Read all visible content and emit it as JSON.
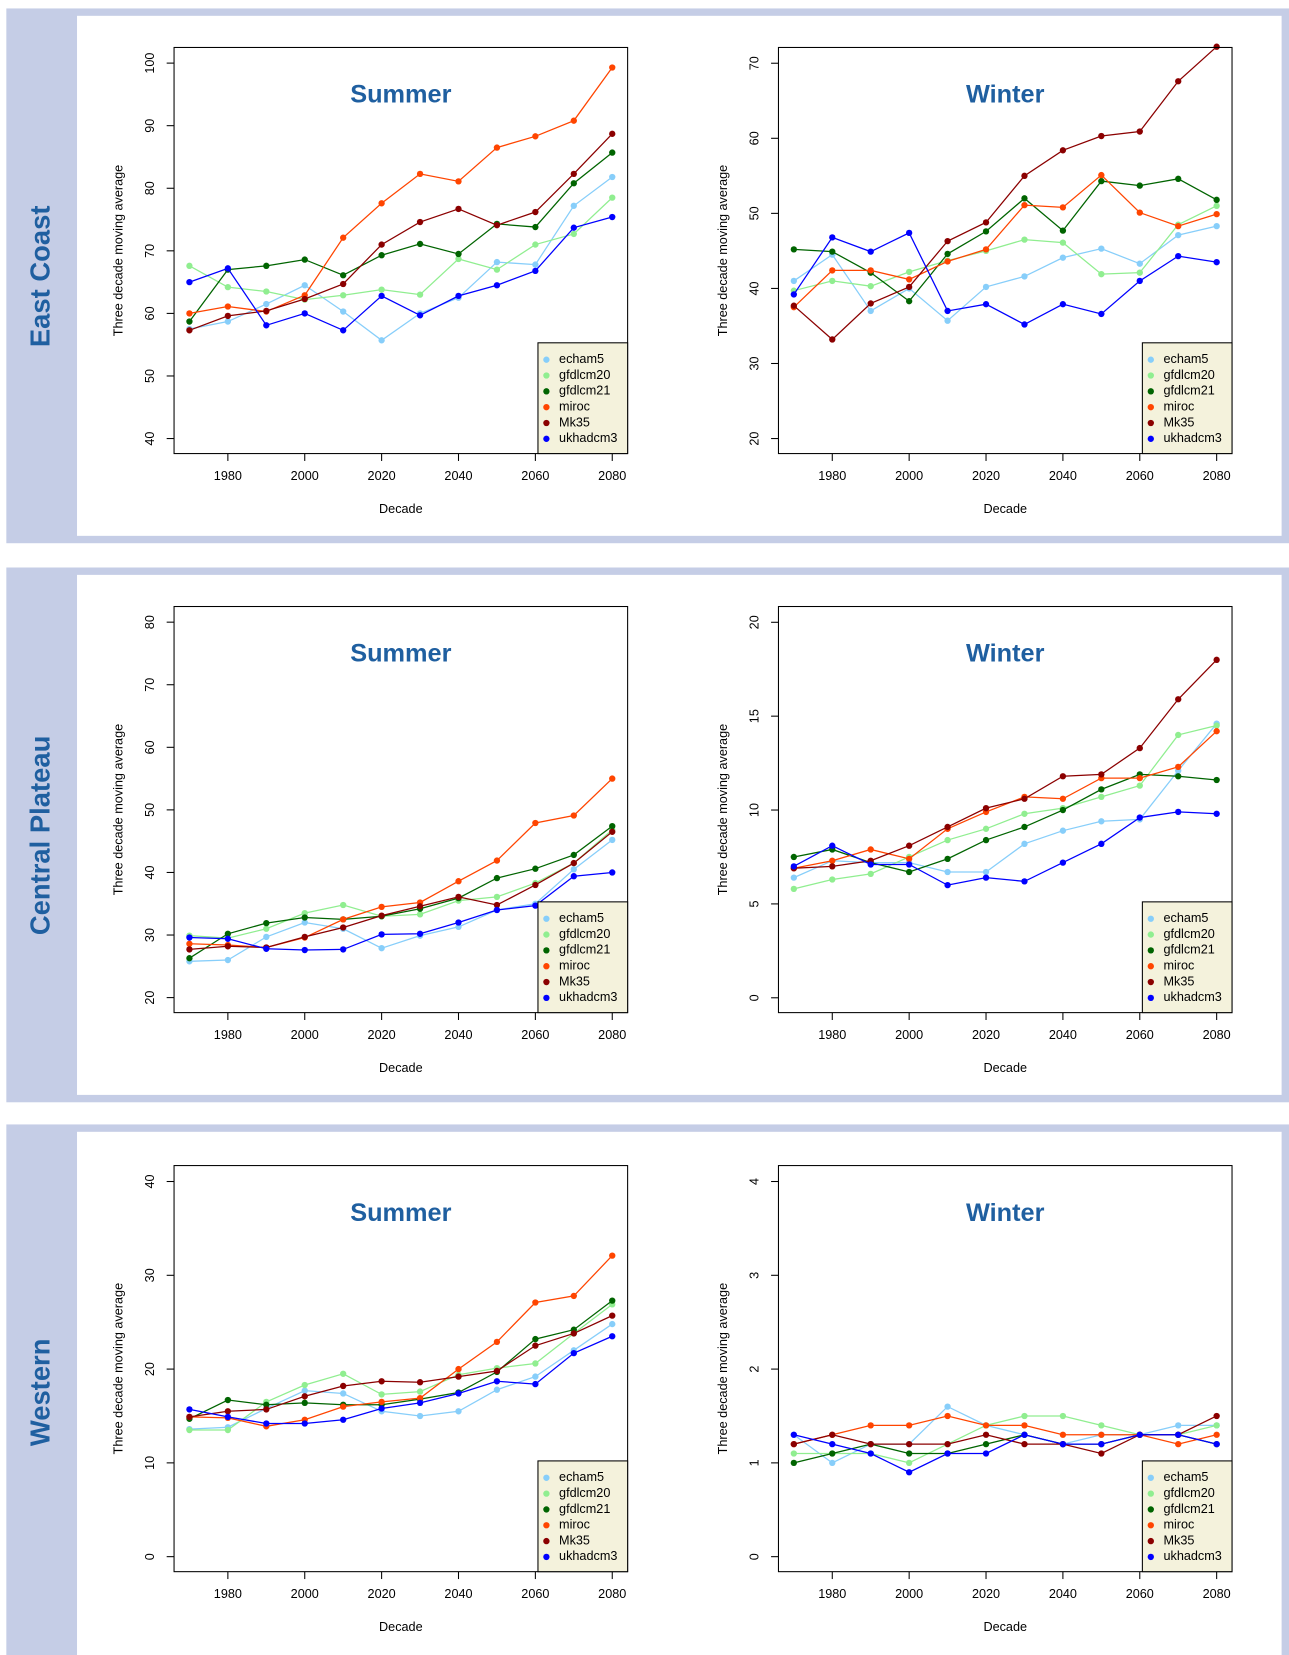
{
  "row_labels": [
    "East Coast",
    "Central Plateau",
    "Western"
  ],
  "chart_data": [
    {
      "type": "line",
      "title": "Summer",
      "x_label": "Decade",
      "y_label": "Three decade moving average",
      "x": [
        1970,
        1980,
        1990,
        2000,
        2010,
        2020,
        2030,
        2040,
        2050,
        2060,
        2070,
        2080
      ],
      "xlim": [
        1966,
        2084
      ],
      "xticks": [
        1980,
        2000,
        2020,
        2040,
        2060,
        2080
      ],
      "ylim": [
        37.6,
        102.5
      ],
      "yticks": [
        40,
        50,
        60,
        70,
        80,
        90,
        100
      ],
      "legend": "bottom-right",
      "series": [
        {
          "name": "echam5",
          "color": "#87cefa",
          "values": [
            57.5,
            58.7,
            61.5,
            64.5,
            60.3,
            55.7,
            60.0,
            62.5,
            68.2,
            67.8,
            77.2,
            81.8
          ]
        },
        {
          "name": "gfdlcm20",
          "color": "#90ee90",
          "values": [
            67.6,
            64.2,
            63.5,
            62.2,
            62.9,
            63.8,
            63.0,
            68.7,
            67.0,
            71.0,
            72.7,
            78.5
          ]
        },
        {
          "name": "gfdlcm21",
          "color": "#006400",
          "values": [
            58.7,
            67.0,
            67.6,
            68.6,
            66.1,
            69.3,
            71.1,
            69.5,
            74.3,
            73.8,
            80.8,
            85.7
          ]
        },
        {
          "name": "miroc",
          "color": "#ff4500",
          "values": [
            60.0,
            61.1,
            60.3,
            62.9,
            72.1,
            77.6,
            82.3,
            81.1,
            86.5,
            88.3,
            90.8,
            99.3
          ]
        },
        {
          "name": "Mk35",
          "color": "#8b0000",
          "values": [
            57.3,
            59.6,
            60.4,
            62.3,
            64.7,
            71.0,
            74.6,
            76.7,
            74.1,
            76.2,
            82.3,
            88.7
          ]
        },
        {
          "name": "ukhadcm3",
          "color": "#0000ff",
          "values": [
            65.0,
            67.2,
            58.1,
            60.0,
            57.3,
            62.8,
            59.7,
            62.8,
            64.5,
            66.8,
            73.7,
            75.4
          ]
        }
      ]
    },
    {
      "type": "line",
      "title": "Winter",
      "x_label": "Decade",
      "y_label": "Three decade moving average",
      "x": [
        1970,
        1980,
        1990,
        2000,
        2010,
        2020,
        2030,
        2040,
        2050,
        2060,
        2070,
        2080
      ],
      "xlim": [
        1966,
        2084
      ],
      "xticks": [
        1980,
        2000,
        2020,
        2040,
        2060,
        2080
      ],
      "ylim": [
        18.0,
        72.1
      ],
      "yticks": [
        20,
        30,
        40,
        50,
        60,
        70
      ],
      "legend": "bottom-right",
      "series": [
        {
          "name": "echam5",
          "color": "#87cefa",
          "values": [
            41.0,
            44.5,
            37.0,
            40.0,
            35.7,
            40.2,
            41.6,
            44.1,
            45.3,
            43.3,
            47.1,
            48.3
          ]
        },
        {
          "name": "gfdlcm20",
          "color": "#90ee90",
          "values": [
            39.7,
            41.0,
            40.3,
            42.2,
            43.7,
            45.0,
            46.5,
            46.1,
            41.9,
            42.1,
            48.5,
            51.0
          ]
        },
        {
          "name": "gfdlcm21",
          "color": "#006400",
          "values": [
            45.2,
            44.9,
            42.1,
            38.3,
            44.6,
            47.6,
            52.0,
            47.7,
            54.3,
            53.7,
            54.6,
            51.8
          ]
        },
        {
          "name": "miroc",
          "color": "#ff4500",
          "values": [
            37.5,
            42.4,
            42.4,
            41.2,
            43.6,
            45.2,
            51.1,
            50.8,
            55.1,
            50.1,
            48.3,
            49.9
          ]
        },
        {
          "name": "Mk35",
          "color": "#8b0000",
          "values": [
            37.7,
            33.2,
            38.0,
            40.2,
            46.3,
            48.8,
            55.0,
            58.4,
            60.3,
            60.9,
            67.6,
            72.2
          ]
        },
        {
          "name": "ukhadcm3",
          "color": "#0000ff",
          "values": [
            39.2,
            46.8,
            44.9,
            47.4,
            37.0,
            37.9,
            35.2,
            37.9,
            36.6,
            41.0,
            44.3,
            43.5
          ]
        }
      ]
    },
    {
      "type": "line",
      "title": "Summer",
      "x_label": "Decade",
      "y_label": "Three decade moving average",
      "x": [
        1970,
        1980,
        1990,
        2000,
        2010,
        2020,
        2030,
        2040,
        2050,
        2060,
        2070,
        2080
      ],
      "xlim": [
        1966,
        2084
      ],
      "xticks": [
        1980,
        2000,
        2020,
        2040,
        2060,
        2080
      ],
      "ylim": [
        17.6,
        82.5
      ],
      "yticks": [
        20,
        30,
        40,
        50,
        60,
        70,
        80
      ],
      "legend": "bottom-right",
      "series": [
        {
          "name": "echam5",
          "color": "#87cefa",
          "values": [
            25.8,
            26.0,
            29.7,
            32.0,
            31.0,
            27.9,
            29.9,
            31.3,
            34.0,
            35.0,
            40.5,
            45.2
          ]
        },
        {
          "name": "gfdlcm20",
          "color": "#90ee90",
          "values": [
            29.9,
            29.5,
            31.0,
            33.5,
            34.8,
            33.0,
            33.3,
            35.5,
            36.1,
            38.3,
            41.5,
            46.8
          ]
        },
        {
          "name": "gfdlcm21",
          "color": "#006400",
          "values": [
            26.3,
            30.2,
            31.9,
            32.8,
            32.5,
            33.0,
            34.2,
            35.9,
            39.1,
            40.6,
            42.8,
            47.4
          ]
        },
        {
          "name": "miroc",
          "color": "#ff4500",
          "values": [
            28.6,
            28.4,
            28.0,
            29.6,
            32.5,
            34.5,
            35.2,
            38.6,
            41.9,
            47.9,
            49.1,
            55.0
          ]
        },
        {
          "name": "Mk35",
          "color": "#8b0000",
          "values": [
            27.7,
            28.2,
            28.0,
            29.7,
            31.2,
            33.1,
            34.6,
            36.1,
            34.8,
            38.0,
            41.5,
            46.5
          ]
        },
        {
          "name": "ukhadcm3",
          "color": "#0000ff",
          "values": [
            29.6,
            29.4,
            27.8,
            27.6,
            27.7,
            30.1,
            30.2,
            32.0,
            34.0,
            34.7,
            39.4,
            40.0
          ]
        }
      ]
    },
    {
      "type": "line",
      "title": "Winter",
      "x_label": "Decade",
      "y_label": "Three decade moving average",
      "x": [
        1970,
        1980,
        1990,
        2000,
        2010,
        2020,
        2030,
        2040,
        2050,
        2060,
        2070,
        2080
      ],
      "xlim": [
        1966,
        2084
      ],
      "xticks": [
        1980,
        2000,
        2020,
        2040,
        2060,
        2080
      ],
      "ylim": [
        -0.79,
        20.84
      ],
      "yticks": [
        0,
        5,
        10,
        15,
        20
      ],
      "legend": "bottom-right",
      "series": [
        {
          "name": "echam5",
          "color": "#87cefa",
          "values": [
            6.4,
            7.3,
            7.2,
            7.2,
            6.7,
            6.7,
            8.2,
            8.9,
            9.4,
            9.5,
            12.1,
            14.6
          ]
        },
        {
          "name": "gfdlcm20",
          "color": "#90ee90",
          "values": [
            5.8,
            6.3,
            6.6,
            7.5,
            8.4,
            9.0,
            9.8,
            10.1,
            10.7,
            11.3,
            14.0,
            14.5
          ]
        },
        {
          "name": "gfdlcm21",
          "color": "#006400",
          "values": [
            7.5,
            7.9,
            7.2,
            6.7,
            7.4,
            8.4,
            9.1,
            10.0,
            11.1,
            11.9,
            11.8,
            11.6
          ]
        },
        {
          "name": "miroc",
          "color": "#ff4500",
          "values": [
            6.9,
            7.3,
            7.9,
            7.4,
            9.0,
            9.9,
            10.7,
            10.6,
            11.7,
            11.7,
            12.3,
            14.2
          ]
        },
        {
          "name": "Mk35",
          "color": "#8b0000",
          "values": [
            6.9,
            7.0,
            7.3,
            8.1,
            9.1,
            10.1,
            10.6,
            11.8,
            11.9,
            13.3,
            15.9,
            18.0
          ]
        },
        {
          "name": "ukhadcm3",
          "color": "#0000ff",
          "values": [
            7.0,
            8.1,
            7.1,
            7.1,
            6.0,
            6.4,
            6.2,
            7.2,
            8.2,
            9.6,
            9.9,
            9.8
          ]
        }
      ]
    },
    {
      "type": "line",
      "title": "Summer",
      "x_label": "Decade",
      "y_label": "Three decade moving average",
      "x": [
        1970,
        1980,
        1990,
        2000,
        2010,
        2020,
        2030,
        2040,
        2050,
        2060,
        2070,
        2080
      ],
      "xlim": [
        1966,
        2084
      ],
      "xticks": [
        1980,
        2000,
        2020,
        2040,
        2060,
        2080
      ],
      "ylim": [
        -1.6,
        41.7
      ],
      "yticks": [
        0,
        10,
        20,
        30,
        40
      ],
      "legend": "bottom-right",
      "series": [
        {
          "name": "echam5",
          "color": "#87cefa",
          "values": [
            13.6,
            13.8,
            15.8,
            17.7,
            17.4,
            15.5,
            15.0,
            15.5,
            17.8,
            19.2,
            22.0,
            24.8
          ]
        },
        {
          "name": "gfdlcm20",
          "color": "#90ee90",
          "values": [
            13.5,
            13.5,
            16.5,
            18.3,
            19.5,
            17.3,
            17.6,
            19.4,
            20.1,
            20.6,
            23.8,
            26.9
          ]
        },
        {
          "name": "gfdlcm21",
          "color": "#006400",
          "values": [
            14.7,
            16.7,
            16.2,
            16.4,
            16.2,
            16.2,
            16.8,
            17.5,
            19.7,
            23.2,
            24.2,
            27.3
          ]
        },
        {
          "name": "miroc",
          "color": "#ff4500",
          "values": [
            14.9,
            14.8,
            13.9,
            14.6,
            16.0,
            16.5,
            16.9,
            20.0,
            22.9,
            27.1,
            27.8,
            32.1
          ]
        },
        {
          "name": "Mk35",
          "color": "#8b0000",
          "values": [
            14.9,
            15.5,
            15.7,
            17.1,
            18.2,
            18.7,
            18.6,
            19.2,
            19.8,
            22.5,
            23.8,
            25.7
          ]
        },
        {
          "name": "ukhadcm3",
          "color": "#0000ff",
          "values": [
            15.7,
            14.9,
            14.2,
            14.2,
            14.6,
            15.8,
            16.4,
            17.4,
            18.7,
            18.4,
            21.7,
            23.5
          ]
        }
      ]
    },
    {
      "type": "line",
      "title": "Winter",
      "x_label": "Decade",
      "y_label": "Three decade moving average",
      "x": [
        1970,
        1980,
        1990,
        2000,
        2010,
        2020,
        2030,
        2040,
        2050,
        2060,
        2070,
        2080
      ],
      "xlim": [
        1966,
        2084
      ],
      "xticks": [
        1980,
        2000,
        2020,
        2040,
        2060,
        2080
      ],
      "ylim": [
        -0.16,
        4.17
      ],
      "yticks": [
        0,
        1,
        2,
        3,
        4
      ],
      "legend": "bottom-right",
      "series": [
        {
          "name": "echam5",
          "color": "#87cefa",
          "values": [
            1.3,
            1.0,
            1.2,
            1.2,
            1.6,
            1.4,
            1.3,
            1.2,
            1.3,
            1.3,
            1.4,
            1.4
          ]
        },
        {
          "name": "gfdlcm20",
          "color": "#90ee90",
          "values": [
            1.1,
            1.1,
            1.1,
            1.0,
            1.2,
            1.4,
            1.5,
            1.5,
            1.4,
            1.3,
            1.3,
            1.4
          ]
        },
        {
          "name": "gfdlcm21",
          "color": "#006400",
          "values": [
            1.0,
            1.1,
            1.2,
            1.1,
            1.1,
            1.2,
            1.3,
            1.2,
            1.2,
            1.3,
            1.3,
            1.2
          ]
        },
        {
          "name": "miroc",
          "color": "#ff4500",
          "values": [
            1.2,
            1.3,
            1.4,
            1.4,
            1.5,
            1.4,
            1.4,
            1.3,
            1.3,
            1.3,
            1.2,
            1.3
          ]
        },
        {
          "name": "Mk35",
          "color": "#8b0000",
          "values": [
            1.2,
            1.3,
            1.2,
            1.2,
            1.2,
            1.3,
            1.2,
            1.2,
            1.1,
            1.3,
            1.3,
            1.5
          ]
        },
        {
          "name": "ukhadcm3",
          "color": "#0000ff",
          "values": [
            1.3,
            1.2,
            1.1,
            0.9,
            1.1,
            1.1,
            1.3,
            1.2,
            1.2,
            1.3,
            1.3,
            1.2
          ]
        }
      ]
    }
  ]
}
